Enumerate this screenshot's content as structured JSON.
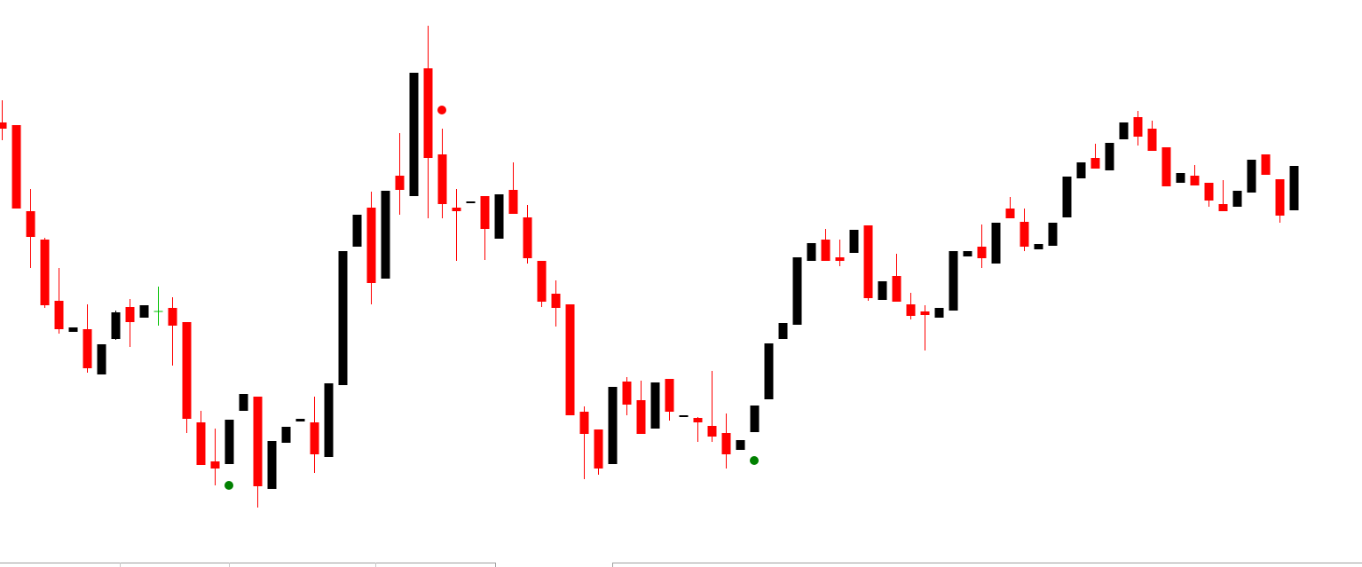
{
  "chart_data": {
    "type": "candlestick",
    "categories": [
      null,
      null,
      null,
      null,
      null,
      null,
      null,
      null,
      null,
      null,
      null,
      null,
      null,
      null,
      null,
      null,
      null,
      null,
      null,
      null,
      null,
      null,
      null,
      null,
      null,
      null,
      null,
      null,
      null,
      null,
      null,
      null,
      null,
      null,
      null,
      null,
      null,
      null,
      null,
      null,
      null,
      null,
      null,
      null,
      null,
      null,
      null,
      null,
      null,
      null,
      null,
      null,
      null,
      null,
      null,
      null,
      null,
      null,
      null,
      null,
      null,
      null,
      null,
      null,
      null,
      null,
      null,
      null,
      null,
      null,
      null,
      null,
      null,
      null,
      null,
      null,
      null,
      null,
      null,
      null,
      null,
      null,
      null,
      null,
      null,
      null,
      null,
      null,
      null,
      null,
      null,
      null
    ],
    "open": [
      501,
      498,
      401,
      369,
      300,
      265,
      268,
      217,
      257,
      293,
      281,
      288,
      292,
      276,
      163,
      119,
      116,
      176,
      192,
      88,
      140,
      164,
      163,
      124,
      205,
      361,
      405,
      325,
      441,
      418,
      562,
      465,
      405,
      410,
      418,
      370,
      425,
      394,
      345,
      308,
      296,
      175,
      155,
      116,
      209,
      188,
      156,
      212,
      169,
      168,
      159,
      151,
      132,
      152,
      189,
      257,
      273,
      345,
      369,
      349,
      354,
      385,
      301,
      328,
      296,
      288,
      281,
      289,
      350,
      361,
      342,
      404,
      389,
      358,
      362,
      394,
      438,
      461,
      447,
      482,
      507,
      494,
      473,
      433,
      441,
      433,
      409,
      406,
      422,
      465,
      437,
      402
    ],
    "high": [
      526,
      498,
      426,
      371,
      337,
      270,
      296,
      251,
      289,
      302,
      295,
      316,
      304,
      276,
      176,
      156,
      166,
      195,
      192,
      142,
      158,
      167,
      192,
      207,
      356,
      397,
      423,
      424,
      489,
      557,
      610,
      494,
      426,
      412,
      418,
      420,
      456,
      408,
      345,
      323,
      296,
      181,
      155,
      203,
      214,
      210,
      208,
      212,
      171,
      169,
      221,
      173,
      143,
      182,
      252,
      275,
      349,
      365,
      381,
      369,
      380,
      385,
      322,
      353,
      309,
      295,
      292,
      356,
      356,
      386,
      388,
      417,
      404,
      364,
      388,
      440,
      456,
      477,
      478,
      501,
      514,
      503,
      473,
      444,
      453,
      433,
      436,
      424,
      459,
      465,
      437,
      452
    ],
    "low": [
      481,
      404,
      337,
      292,
      263,
      265,
      219,
      217,
      256,
      248,
      281,
      272,
      227,
      151,
      115,
      92,
      116,
      176,
      67,
      88,
      140,
      164,
      106,
      124,
      205,
      361,
      296,
      325,
      397,
      418,
      393,
      393,
      345,
      410,
      346,
      370,
      398,
      342,
      293,
      271,
      171,
      99,
      104,
      116,
      171,
      150,
      156,
      165,
      169,
      141,
      141,
      111,
      132,
      152,
      189,
      257,
      273,
      345,
      345,
      339,
      354,
      300,
      301,
      299,
      279,
      244,
      281,
      289,
      350,
      337,
      342,
      393,
      356,
      358,
      362,
      394,
      438,
      449,
      447,
      482,
      475,
      469,
      429,
      433,
      430,
      406,
      401,
      406,
      422,
      442,
      388,
      402
    ],
    "close": [
      494,
      404,
      372,
      295,
      268,
      270,
      224,
      251,
      287,
      276,
      295,
      288,
      272,
      167,
      115,
      111,
      166,
      195,
      91,
      142,
      158,
      167,
      127,
      207,
      356,
      397,
      320,
      424,
      425,
      557,
      461,
      409,
      401,
      412,
      381,
      420,
      398,
      348,
      299,
      292,
      171,
      150,
      111,
      203,
      183,
      150,
      208,
      175,
      171,
      163,
      147,
      127,
      143,
      182,
      252,
      275,
      349,
      365,
      345,
      345,
      380,
      303,
      322,
      299,
      283,
      284,
      292,
      356,
      356,
      348,
      388,
      393,
      361,
      364,
      388,
      440,
      456,
      449,
      478,
      501,
      485,
      469,
      429,
      444,
      430,
      413,
      401,
      424,
      459,
      442,
      396,
      452
    ],
    "up_color": "#000000",
    "down_color": "#ff0000",
    "doji_color": "#00c000",
    "markers": [
      {
        "index": 16,
        "value": 92,
        "color": "#008000"
      },
      {
        "index": 31,
        "value": 515,
        "color": "#ff0000"
      },
      {
        "index": 53,
        "value": 120,
        "color": "#008000"
      }
    ],
    "ylim": [
      0,
      639
    ]
  }
}
